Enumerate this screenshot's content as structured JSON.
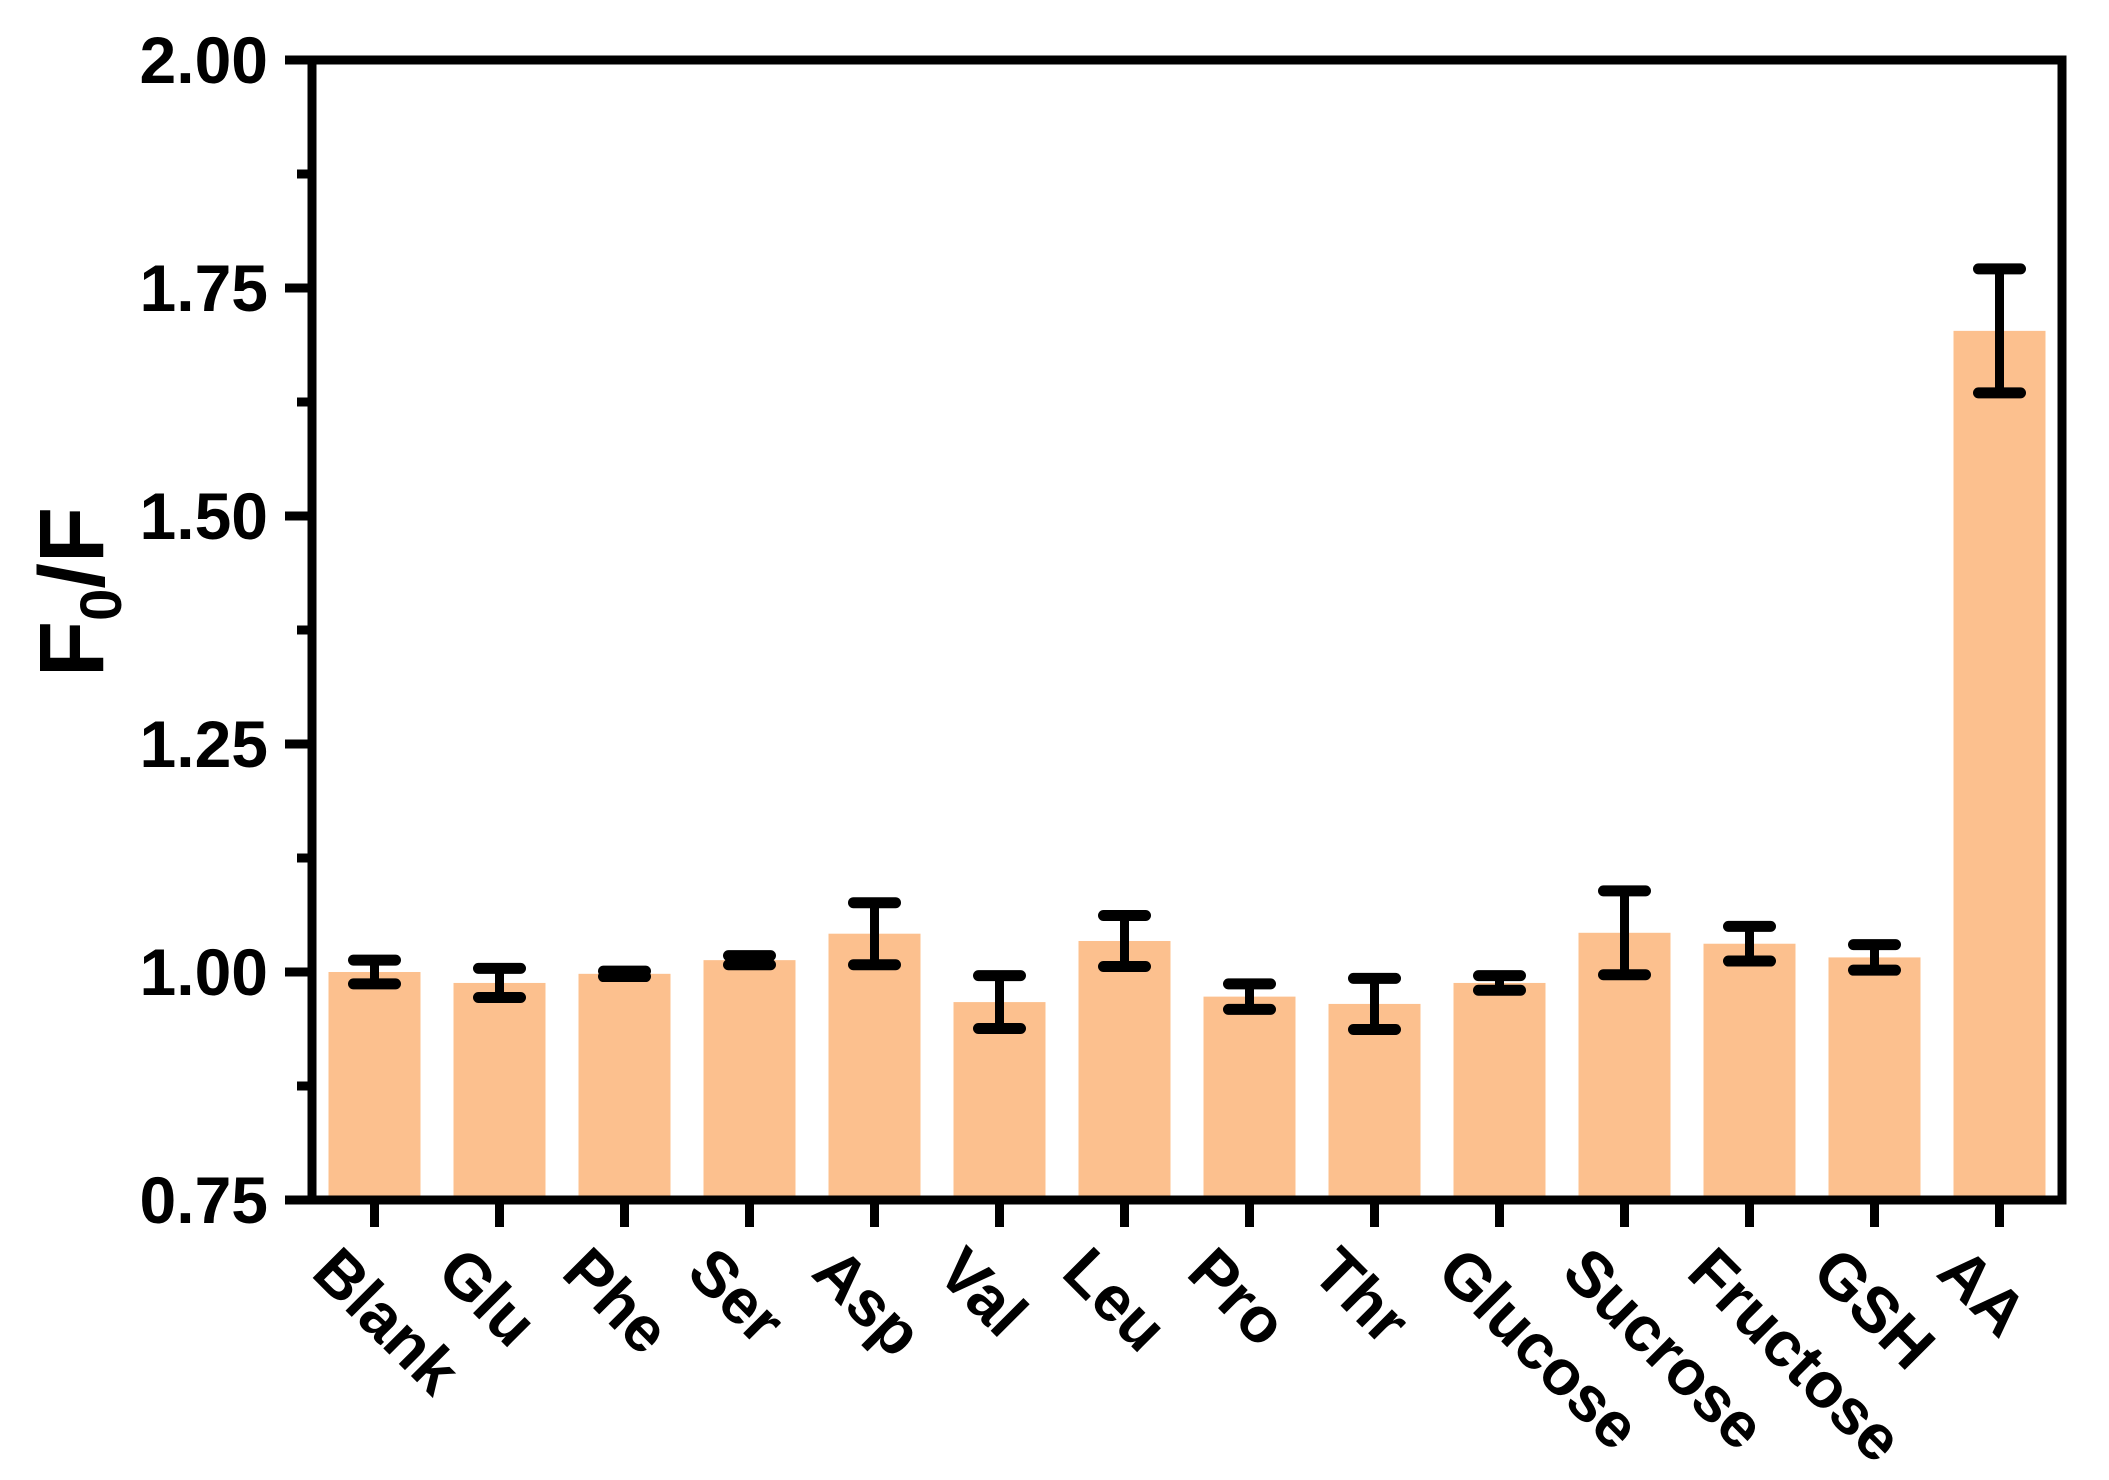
{
  "figure": {
    "kind": "scientific bar chart with error bars",
    "background_color": "#ffffff"
  },
  "chart_data": {
    "type": "bar",
    "title": "",
    "xlabel": "",
    "ylabel": "F0/F",
    "ylabel_parts": {
      "main": "F",
      "sub": "0",
      "rest": "/F"
    },
    "categories": [
      "Blank",
      "Glu",
      "Phe",
      "Ser",
      "Asp",
      "Val",
      "Leu",
      "Pro",
      "Thr",
      "Glucose",
      "Sucrose",
      "Fructose",
      "GSH",
      "AA"
    ],
    "values": [
      1.0,
      0.988,
      0.998,
      1.013,
      1.042,
      0.967,
      1.034,
      0.973,
      0.965,
      0.988,
      1.043,
      1.031,
      1.016,
      1.703
    ],
    "errors": [
      0.013,
      0.016,
      0.003,
      0.005,
      0.034,
      0.029,
      0.028,
      0.014,
      0.028,
      0.008,
      0.046,
      0.019,
      0.014,
      0.068
    ],
    "ylim": [
      0.75,
      2.0
    ],
    "y_major_ticks": [
      {
        "value": 0.75,
        "label": "0.75"
      },
      {
        "value": 1.0,
        "label": "1.00"
      },
      {
        "value": 1.25,
        "label": "1.25"
      },
      {
        "value": 1.5,
        "label": "1.50"
      },
      {
        "value": 1.75,
        "label": "1.75"
      },
      {
        "value": 2.0,
        "label": "2.00"
      }
    ],
    "y_minor_ticks": [
      0.875,
      1.125,
      1.375,
      1.625,
      1.875
    ],
    "bar_color": "#FCC08E",
    "axis_color": "#000000",
    "grid": false,
    "legend": null
  }
}
